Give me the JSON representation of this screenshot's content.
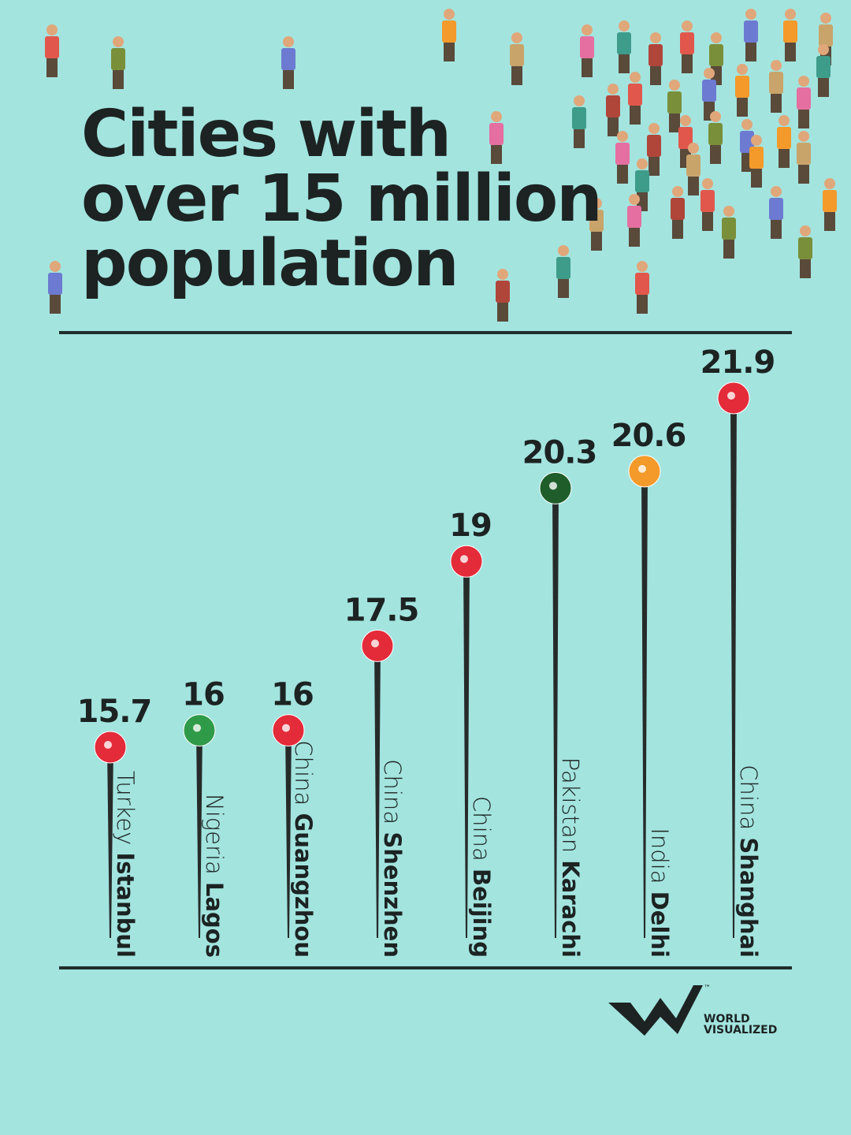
{
  "chart_data": {
    "type": "lollipop",
    "title": [
      "Cities with",
      "over 15 million",
      "population"
    ],
    "categories": [
      "Istanbul",
      "Lagos",
      "Guangzhou",
      "Shenzhen",
      "Beijing",
      "Karachi",
      "Delhi",
      "Shanghai"
    ],
    "countries": [
      "Turkey",
      "Nigeria",
      "China",
      "China",
      "China",
      "Pakistan",
      "India",
      "China"
    ],
    "values": [
      15.7,
      16,
      16,
      17.5,
      19,
      20.3,
      20.6,
      21.9
    ],
    "flag_colors": [
      "#e42b3a",
      "#2f9a48",
      "#e42b3a",
      "#e42b3a",
      "#e42b3a",
      "#1f5e2a",
      "#f39a2b",
      "#e42b3a"
    ],
    "color": "#262b2a"
  },
  "logo": {
    "text": [
      "WORLD",
      "VISUALIZED"
    ],
    "mark": "™"
  }
}
